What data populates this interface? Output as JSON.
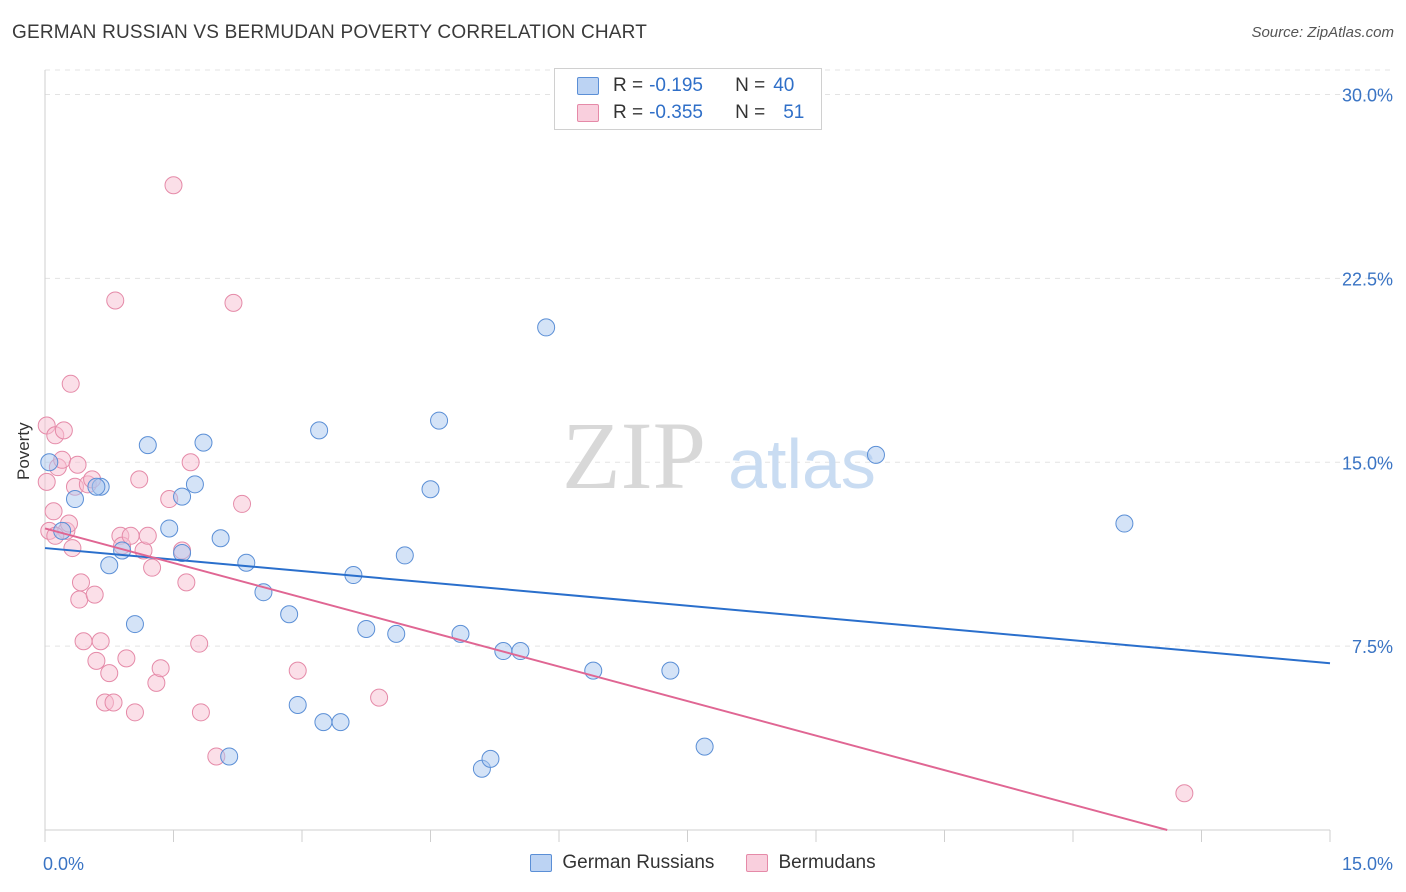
{
  "title": "GERMAN RUSSIAN VS BERMUDAN POVERTY CORRELATION CHART",
  "source": "Source: ZipAtlas.com",
  "watermark": {
    "zip": "ZIP",
    "atlas": "atlas"
  },
  "legend": {
    "series1": {
      "r_label": "R =",
      "r_value": "-0.195",
      "n_label": "N =",
      "n_value": "40"
    },
    "series2": {
      "r_label": "R =",
      "r_value": "-0.355",
      "n_label": "N =",
      "n_value": "51"
    }
  },
  "colors": {
    "blue_fill": "#a9c8f0",
    "blue_stroke": "#5b8fd6",
    "blue_line": "#2a6fcc",
    "pink_fill": "#f7c0d2",
    "pink_stroke": "#e58aa8",
    "pink_line": "#e06693",
    "tick_label": "#3a74c4"
  },
  "chart_data": {
    "type": "scatter",
    "title": "GERMAN RUSSIAN VS BERMUDAN POVERTY CORRELATION CHART",
    "xlabel": "",
    "ylabel": "Poverty",
    "xlim": [
      0,
      15
    ],
    "ylim": [
      0,
      31
    ],
    "x_tick_labels": [
      "0.0%",
      "15.0%"
    ],
    "y_ticks": [
      7.5,
      15.0,
      22.5,
      30.0
    ],
    "y_tick_labels": [
      "7.5%",
      "15.0%",
      "22.5%",
      "30.0%"
    ],
    "grid": true,
    "legend_position": "top-center",
    "series": [
      {
        "name": "German Russians",
        "color": "#5b8fd6",
        "trend": {
          "x": [
            0,
            15
          ],
          "y": [
            11.5,
            6.8
          ]
        },
        "points": [
          [
            0.05,
            15.0
          ],
          [
            0.2,
            12.2
          ],
          [
            0.35,
            13.5
          ],
          [
            0.65,
            14.0
          ],
          [
            0.75,
            10.8
          ],
          [
            0.9,
            11.4
          ],
          [
            1.05,
            8.4
          ],
          [
            1.2,
            15.7
          ],
          [
            1.45,
            12.3
          ],
          [
            1.6,
            13.6
          ],
          [
            1.75,
            14.1
          ],
          [
            1.85,
            15.8
          ],
          [
            2.05,
            11.9
          ],
          [
            2.15,
            3.0
          ],
          [
            2.35,
            10.9
          ],
          [
            2.55,
            9.7
          ],
          [
            2.85,
            8.8
          ],
          [
            2.95,
            5.1
          ],
          [
            3.2,
            16.3
          ],
          [
            3.25,
            4.4
          ],
          [
            3.45,
            4.4
          ],
          [
            3.6,
            10.4
          ],
          [
            3.75,
            8.2
          ],
          [
            4.1,
            8.0
          ],
          [
            4.2,
            11.2
          ],
          [
            4.5,
            13.9
          ],
          [
            4.6,
            16.7
          ],
          [
            4.85,
            8.0
          ],
          [
            5.1,
            2.5
          ],
          [
            5.2,
            2.9
          ],
          [
            5.35,
            7.3
          ],
          [
            5.55,
            7.3
          ],
          [
            5.85,
            20.5
          ],
          [
            6.4,
            6.5
          ],
          [
            7.3,
            6.5
          ],
          [
            7.7,
            3.4
          ],
          [
            9.7,
            15.3
          ],
          [
            12.6,
            12.5
          ],
          [
            1.6,
            11.3
          ],
          [
            0.6,
            14.0
          ]
        ]
      },
      {
        "name": "Bermudans",
        "color": "#e58aa8",
        "trend": {
          "x": [
            0,
            13.1
          ],
          "y": [
            12.3,
            0.0
          ]
        },
        "points": [
          [
            0.02,
            16.5
          ],
          [
            0.02,
            14.2
          ],
          [
            0.05,
            12.2
          ],
          [
            0.1,
            13.0
          ],
          [
            0.12,
            16.1
          ],
          [
            0.15,
            14.8
          ],
          [
            0.2,
            15.1
          ],
          [
            0.22,
            16.3
          ],
          [
            0.25,
            12.2
          ],
          [
            0.28,
            12.5
          ],
          [
            0.3,
            18.2
          ],
          [
            0.32,
            11.5
          ],
          [
            0.35,
            14.0
          ],
          [
            0.38,
            14.9
          ],
          [
            0.4,
            9.4
          ],
          [
            0.42,
            10.1
          ],
          [
            0.45,
            7.7
          ],
          [
            0.5,
            14.1
          ],
          [
            0.55,
            14.3
          ],
          [
            0.58,
            9.6
          ],
          [
            0.6,
            6.9
          ],
          [
            0.65,
            7.7
          ],
          [
            0.7,
            5.2
          ],
          [
            0.75,
            6.4
          ],
          [
            0.8,
            5.2
          ],
          [
            0.82,
            21.6
          ],
          [
            0.88,
            12.0
          ],
          [
            0.9,
            11.6
          ],
          [
            0.95,
            7.0
          ],
          [
            1.0,
            12.0
          ],
          [
            1.05,
            4.8
          ],
          [
            1.1,
            14.3
          ],
          [
            1.15,
            11.4
          ],
          [
            1.2,
            12.0
          ],
          [
            1.25,
            10.7
          ],
          [
            1.3,
            6.0
          ],
          [
            1.35,
            6.6
          ],
          [
            1.45,
            13.5
          ],
          [
            1.5,
            26.3
          ],
          [
            1.6,
            11.4
          ],
          [
            1.65,
            10.1
          ],
          [
            1.7,
            15.0
          ],
          [
            1.8,
            7.6
          ],
          [
            1.82,
            4.8
          ],
          [
            2.0,
            3.0
          ],
          [
            2.2,
            21.5
          ],
          [
            2.3,
            13.3
          ],
          [
            2.95,
            6.5
          ],
          [
            3.9,
            5.4
          ],
          [
            13.3,
            1.5
          ],
          [
            0.12,
            12.0
          ]
        ]
      }
    ]
  },
  "bottom_legend": [
    "German Russians",
    "Bermudans"
  ]
}
